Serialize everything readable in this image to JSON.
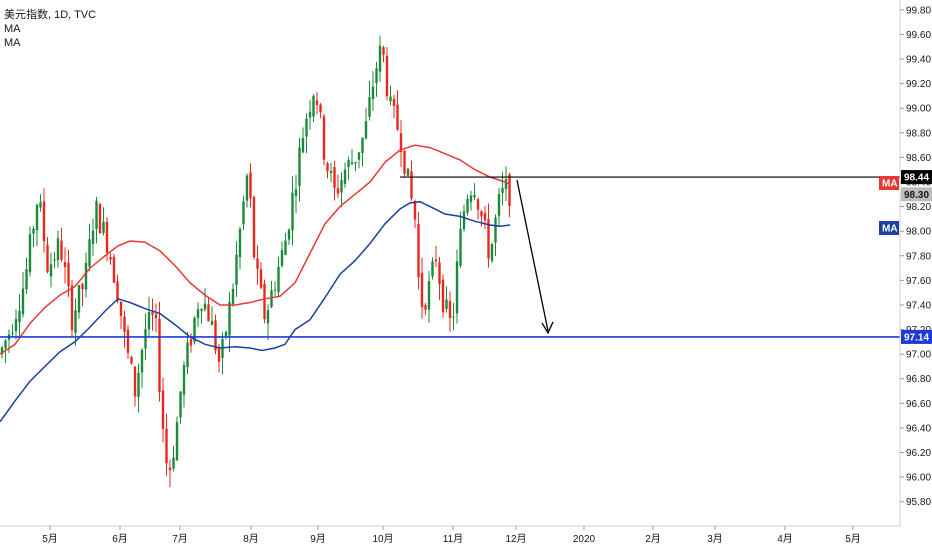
{
  "legend": {
    "title": "美元指数, 1D, TVC",
    "indicators": [
      "MA",
      "MA"
    ]
  },
  "colors": {
    "up": "#1a8a3a",
    "down": "#e8281e",
    "ma_fast": "#e53935",
    "ma_slow": "#1a3f9c",
    "resistance": "#000000",
    "support": "#1f3bd6",
    "last_price_bg": "#bdbdbd"
  },
  "chart_data": {
    "type": "candlestick",
    "y_axis": {
      "min": 95.7,
      "max": 99.88,
      "ticks": [
        "95.80",
        "96.00",
        "96.20",
        "96.40",
        "96.60",
        "96.80",
        "97.00",
        "97.20",
        "97.40",
        "97.60",
        "97.80",
        "98.00",
        "98.20",
        "98.40",
        "98.60",
        "98.80",
        "99.00",
        "99.20",
        "99.40",
        "99.60",
        "99.80"
      ]
    },
    "x_axis": {
      "ticks": [
        "5月",
        "6月",
        "7月",
        "8月",
        "9月",
        "10月",
        "11月",
        "12月",
        "2020",
        "2月",
        "3月",
        "4月",
        "5月"
      ]
    },
    "series": [
      {
        "name": "MA",
        "kind": "moving_average",
        "color": "#e53935"
      },
      {
        "name": "MA",
        "kind": "moving_average",
        "color": "#1a3f9c"
      }
    ],
    "ma_fast_values": [
      [
        0,
        97.0
      ],
      [
        15,
        97.08
      ],
      [
        30,
        97.25
      ],
      [
        45,
        97.38
      ],
      [
        60,
        97.48
      ],
      [
        75,
        97.55
      ],
      [
        90,
        97.7
      ],
      [
        105,
        97.8
      ],
      [
        118,
        97.88
      ],
      [
        130,
        97.92
      ],
      [
        145,
        97.91
      ],
      [
        160,
        97.84
      ],
      [
        175,
        97.72
      ],
      [
        190,
        97.58
      ],
      [
        205,
        97.48
      ],
      [
        220,
        97.4
      ],
      [
        235,
        97.4
      ],
      [
        250,
        97.42
      ],
      [
        265,
        97.45
      ],
      [
        280,
        97.47
      ],
      [
        295,
        97.58
      ],
      [
        310,
        97.82
      ],
      [
        325,
        98.06
      ],
      [
        340,
        98.2
      ],
      [
        355,
        98.3
      ],
      [
        370,
        98.4
      ],
      [
        385,
        98.56
      ],
      [
        400,
        98.66
      ],
      [
        415,
        98.7
      ],
      [
        430,
        98.68
      ],
      [
        445,
        98.63
      ],
      [
        460,
        98.58
      ],
      [
        475,
        98.5
      ],
      [
        490,
        98.44
      ],
      [
        505,
        98.4
      ],
      [
        510,
        98.38
      ]
    ],
    "ma_slow_values": [
      [
        0,
        96.45
      ],
      [
        15,
        96.62
      ],
      [
        30,
        96.78
      ],
      [
        45,
        96.9
      ],
      [
        60,
        97.02
      ],
      [
        75,
        97.1
      ],
      [
        90,
        97.22
      ],
      [
        105,
        97.35
      ],
      [
        118,
        97.45
      ],
      [
        130,
        97.42
      ],
      [
        145,
        97.37
      ],
      [
        160,
        97.33
      ],
      [
        175,
        97.24
      ],
      [
        190,
        97.14
      ],
      [
        205,
        97.08
      ],
      [
        220,
        97.05
      ],
      [
        235,
        97.06
      ],
      [
        250,
        97.05
      ],
      [
        262,
        97.03
      ],
      [
        275,
        97.05
      ],
      [
        285,
        97.08
      ],
      [
        295,
        97.2
      ],
      [
        310,
        97.28
      ],
      [
        325,
        97.46
      ],
      [
        340,
        97.65
      ],
      [
        355,
        97.76
      ],
      [
        370,
        97.9
      ],
      [
        385,
        98.06
      ],
      [
        400,
        98.18
      ],
      [
        410,
        98.23
      ],
      [
        420,
        98.24
      ],
      [
        430,
        98.2
      ],
      [
        445,
        98.14
      ],
      [
        460,
        98.12
      ],
      [
        475,
        98.08
      ],
      [
        490,
        98.05
      ],
      [
        500,
        98.04
      ],
      [
        510,
        98.05
      ]
    ],
    "resistance_level": 98.44,
    "support_level": 97.14,
    "last_price": 98.3,
    "price_labels": {
      "resistance": "98.44",
      "support": "97.14",
      "last": "98.30",
      "ma_fast_tag": "MA",
      "ma_slow_tag": "MA"
    }
  }
}
